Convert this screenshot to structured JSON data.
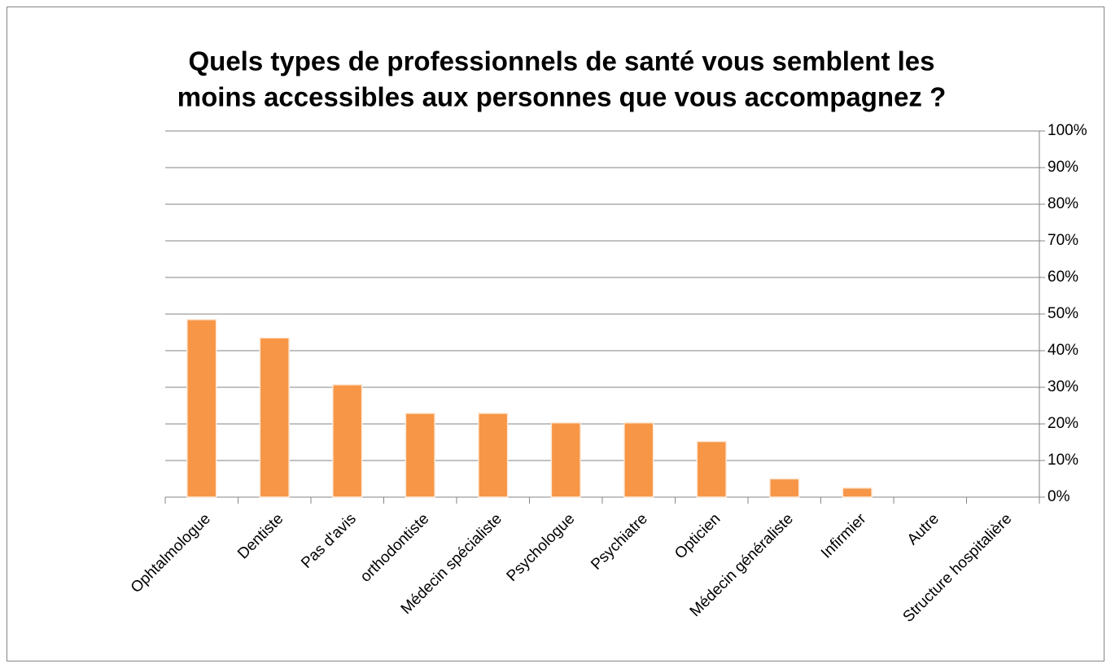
{
  "chart_data": {
    "type": "bar",
    "title": [
      "Quels types de professionnels de santé vous semblent les",
      "moins accessibles aux personnes que vous accompagnez ?"
    ],
    "categories": [
      "Ophtalmologue",
      "Dentiste",
      "Pas d'avis",
      "orthodontiste",
      "Médecin spécialiste",
      "Psychologue",
      "Psychiatre",
      "Opticien",
      "Médecin généraliste",
      "Infirmier",
      "Autre",
      "Structure hospitalière"
    ],
    "values": [
      48.5,
      43.5,
      30.7,
      22.9,
      22.9,
      20.3,
      20.3,
      15.2,
      5,
      2.5,
      0,
      0
    ],
    "color": "#f79646",
    "ylim": [
      0,
      100
    ],
    "yticks": [
      {
        "value": 0,
        "label": "0%"
      },
      {
        "value": 10,
        "label": "10%"
      },
      {
        "value": 20,
        "label": "20%"
      },
      {
        "value": 30,
        "label": "30%"
      },
      {
        "value": 40,
        "label": "40%"
      },
      {
        "value": 50,
        "label": "50%"
      },
      {
        "value": 60,
        "label": "60%"
      },
      {
        "value": 70,
        "label": "70%"
      },
      {
        "value": 80,
        "label": "80%"
      },
      {
        "value": 90,
        "label": "90%"
      },
      {
        "value": 100,
        "label": "100%"
      }
    ],
    "grid": true,
    "y_axis_side": "right"
  }
}
